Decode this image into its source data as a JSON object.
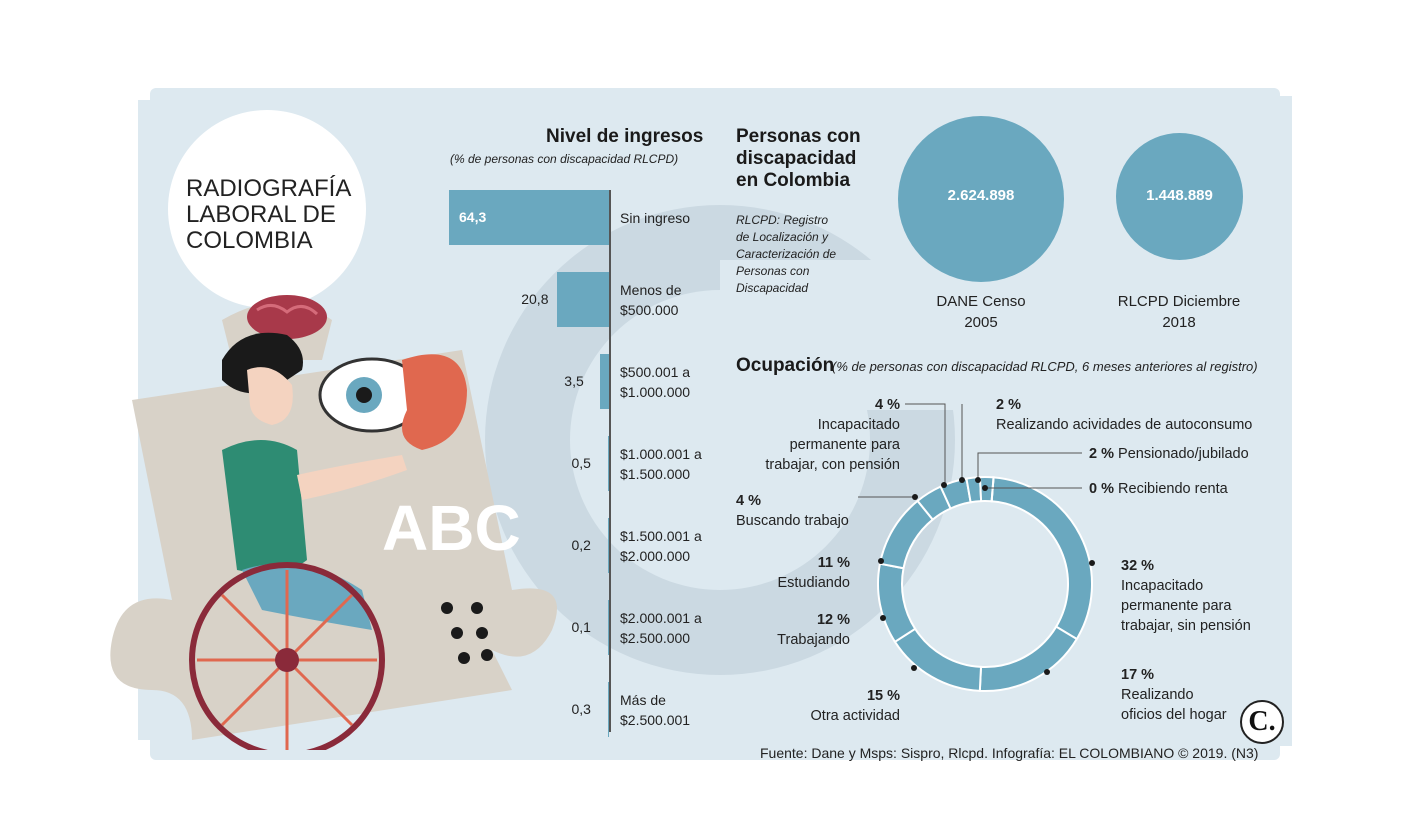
{
  "main_title": "RADIOGRAFÍA\nLABORAL DE\nCOLOMBIA",
  "illustration": {
    "letters": "ABC"
  },
  "colors": {
    "accent": "#6aa8bf",
    "background": "#dde9f0"
  },
  "chart_data": [
    {
      "type": "bar",
      "title": "Nivel de ingresos",
      "subtitle": "(% de personas con discapacidad RLCPD)",
      "orientation": "horizontal",
      "categories": [
        "Sin ingreso",
        "Menos de\n$500.000",
        "$500.001 a\n$1.000.000",
        "$1.000.001 a\n$1.500.000",
        "$1.500.001 a\n$2.000.000",
        "$2.000.001 a\n$2.500.000",
        "Más de\n$2.500.001"
      ],
      "values": [
        64.3,
        20.8,
        3.5,
        0.5,
        0.2,
        0.1,
        0.3
      ],
      "value_labels": [
        "64,3",
        "20,8",
        "3,5",
        "0,5",
        "0,2",
        "0,1",
        "0,3"
      ]
    },
    {
      "type": "bubble",
      "title": "Personas con\ndiscapacidad\nen Colombia",
      "note": "RLCPD: Registro\nde Localización y\nCaracterización de\nPersonas con\nDiscapacidad",
      "items": [
        {
          "label": "DANE Censo\n2005",
          "value": 2624898,
          "value_label": "2.624.898"
        },
        {
          "label": "RLCPD Diciembre\n2018",
          "value": 1448889,
          "value_label": "1.448.889"
        }
      ]
    },
    {
      "type": "pie",
      "title": "Ocupación",
      "subtitle": "(% de personas con discapacidad RLCPD, 6 meses anteriores al registro)",
      "slices": [
        {
          "label": "Incapacitado\npermanente para\ntrabajar, sin pensión",
          "value": 32,
          "value_label": "32 %"
        },
        {
          "label": "Realizando\noficios del hogar",
          "value": 17,
          "value_label": "17 %"
        },
        {
          "label": "Otra actividad",
          "value": 15,
          "value_label": "15 %"
        },
        {
          "label": "Trabajando",
          "value": 12,
          "value_label": "12 %"
        },
        {
          "label": "Estudiando",
          "value": 11,
          "value_label": "11 %"
        },
        {
          "label": "Buscando trabajo",
          "value": 4,
          "value_label": "4 %"
        },
        {
          "label": "Incapacitado\npermanente para\ntrabajar, con pensión",
          "value": 4,
          "value_label": "4 %"
        },
        {
          "label": "Realizando acividades de autoconsumo",
          "value": 2,
          "value_label": "2 %"
        },
        {
          "label": "Pensionado/jubilado",
          "value": 2,
          "value_label": "2 %"
        },
        {
          "label": "Recibiendo renta",
          "value": 0,
          "value_label": "0 %"
        }
      ]
    }
  ],
  "source": "Fuente: Dane y Msps: Sispro, Rlcpd. Infografía: EL COLOMBIANO © 2019. (N3)",
  "logo": "C."
}
